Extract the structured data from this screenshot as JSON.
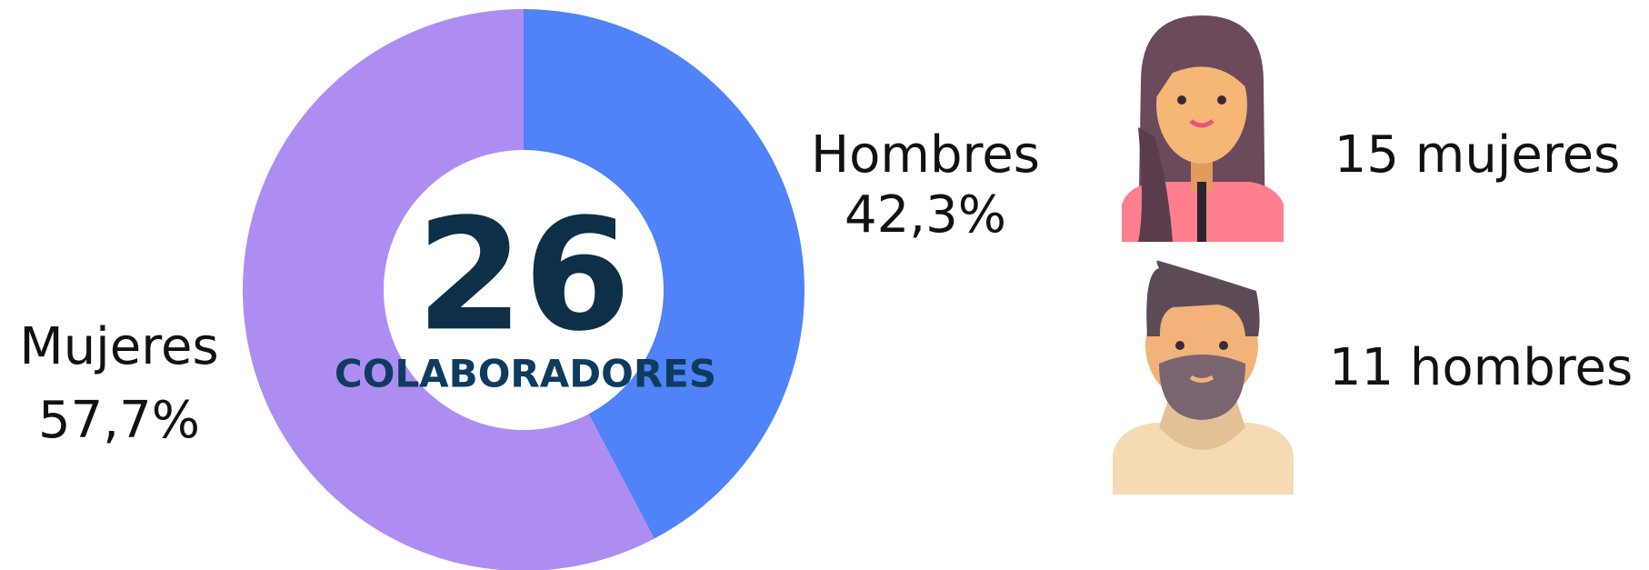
{
  "chart_data": {
    "type": "pie",
    "donut": true,
    "categories": [
      "Hombres",
      "Mujeres"
    ],
    "values": [
      42.3,
      57.7
    ],
    "value_labels": [
      "42,3%",
      "57,7%"
    ],
    "colors": [
      "#4f83f7",
      "#ae8df3"
    ],
    "center_value": 26,
    "center_label": "COLABORADORES",
    "annotations": [
      "15 mujeres",
      "11 hombres"
    ]
  }
}
